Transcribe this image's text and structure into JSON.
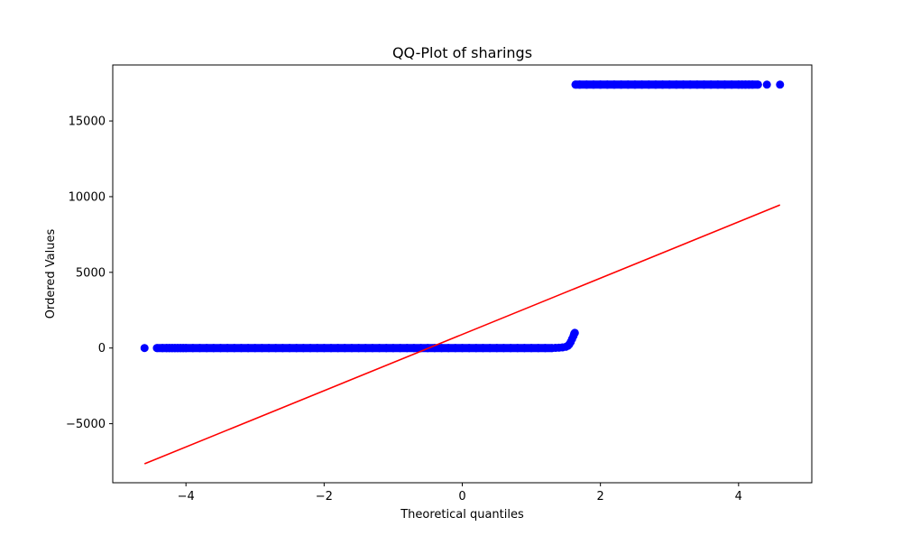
{
  "chart_data": {
    "type": "scatter",
    "title": "QQ-Plot of sharings",
    "xlabel": "Theoretical quantiles",
    "ylabel": "Ordered Values",
    "xlim": [
      -5.06,
      5.06
    ],
    "ylim": [
      -8900,
      18700
    ],
    "xticks": [
      -4,
      -2,
      0,
      2,
      4
    ],
    "yticks": [
      -5000,
      0,
      5000,
      10000,
      15000
    ],
    "xtick_labels": [
      "−4",
      "−2",
      "0",
      "2",
      "4"
    ],
    "ytick_labels": [
      "−5000",
      "0",
      "5000",
      "10000",
      "15000"
    ],
    "grid": false,
    "series": [
      {
        "kind": "points",
        "color": "#0000ff",
        "points": [
          [
            -4.6,
            0
          ],
          [
            -4.42,
            0
          ],
          [
            -4.34,
            0
          ],
          [
            -4.28,
            0
          ],
          [
            -4.24,
            0
          ],
          [
            -4.2,
            0
          ],
          [
            -4.16,
            0
          ],
          [
            -4.12,
            0
          ],
          [
            -4.08,
            0
          ],
          [
            -4.04,
            0
          ],
          [
            -4.0,
            0
          ],
          [
            -3.9,
            0
          ],
          [
            -3.8,
            0
          ],
          [
            -3.7,
            0
          ],
          [
            -3.6,
            0
          ],
          [
            -3.5,
            0
          ],
          [
            -3.4,
            0
          ],
          [
            -3.3,
            0
          ],
          [
            -3.2,
            0
          ],
          [
            -3.1,
            0
          ],
          [
            -3.0,
            0
          ],
          [
            -2.9,
            0
          ],
          [
            -2.8,
            0
          ],
          [
            -2.7,
            0
          ],
          [
            -2.6,
            0
          ],
          [
            -2.5,
            0
          ],
          [
            -2.4,
            0
          ],
          [
            -2.3,
            0
          ],
          [
            -2.2,
            0
          ],
          [
            -2.1,
            0
          ],
          [
            -2.0,
            0
          ],
          [
            -1.9,
            0
          ],
          [
            -1.8,
            0
          ],
          [
            -1.7,
            0
          ],
          [
            -1.6,
            0
          ],
          [
            -1.5,
            0
          ],
          [
            -1.4,
            0
          ],
          [
            -1.3,
            0
          ],
          [
            -1.2,
            0
          ],
          [
            -1.1,
            0
          ],
          [
            -1.0,
            0
          ],
          [
            -0.9,
            0
          ],
          [
            -0.8,
            0
          ],
          [
            -0.7,
            0
          ],
          [
            -0.6,
            0
          ],
          [
            -0.5,
            0
          ],
          [
            -0.4,
            0
          ],
          [
            -0.3,
            0
          ],
          [
            -0.2,
            0
          ],
          [
            -0.1,
            0
          ],
          [
            0.0,
            0
          ],
          [
            0.1,
            0
          ],
          [
            0.2,
            0
          ],
          [
            0.3,
            0
          ],
          [
            0.4,
            0
          ],
          [
            0.5,
            0
          ],
          [
            0.6,
            0
          ],
          [
            0.7,
            0
          ],
          [
            0.8,
            0
          ],
          [
            0.9,
            0
          ],
          [
            1.0,
            0
          ],
          [
            1.1,
            0
          ],
          [
            1.2,
            0
          ],
          [
            1.3,
            0
          ],
          [
            1.35,
            10
          ],
          [
            1.4,
            20
          ],
          [
            1.45,
            40
          ],
          [
            1.5,
            80
          ],
          [
            1.53,
            150
          ],
          [
            1.55,
            250
          ],
          [
            1.57,
            400
          ],
          [
            1.59,
            600
          ],
          [
            1.61,
            800
          ],
          [
            1.62,
            950
          ],
          [
            1.63,
            1000
          ],
          [
            1.64,
            17400
          ],
          [
            1.7,
            17400
          ],
          [
            1.8,
            17400
          ],
          [
            1.9,
            17400
          ],
          [
            2.0,
            17400
          ],
          [
            2.1,
            17400
          ],
          [
            2.2,
            17400
          ],
          [
            2.3,
            17400
          ],
          [
            2.4,
            17400
          ],
          [
            2.5,
            17400
          ],
          [
            2.6,
            17400
          ],
          [
            2.7,
            17400
          ],
          [
            2.8,
            17400
          ],
          [
            2.9,
            17400
          ],
          [
            3.0,
            17400
          ],
          [
            3.1,
            17400
          ],
          [
            3.2,
            17400
          ],
          [
            3.3,
            17400
          ],
          [
            3.4,
            17400
          ],
          [
            3.5,
            17400
          ],
          [
            3.6,
            17400
          ],
          [
            3.7,
            17400
          ],
          [
            3.8,
            17400
          ],
          [
            3.9,
            17400
          ],
          [
            4.0,
            17400
          ],
          [
            4.05,
            17400
          ],
          [
            4.1,
            17400
          ],
          [
            4.15,
            17400
          ],
          [
            4.2,
            17400
          ],
          [
            4.28,
            17400
          ],
          [
            4.41,
            17400
          ],
          [
            4.6,
            17400
          ]
        ]
      },
      {
        "kind": "fit-line",
        "color": "#ff0000",
        "points": [
          [
            -4.6,
            -7650
          ],
          [
            4.6,
            9450
          ]
        ]
      }
    ]
  }
}
